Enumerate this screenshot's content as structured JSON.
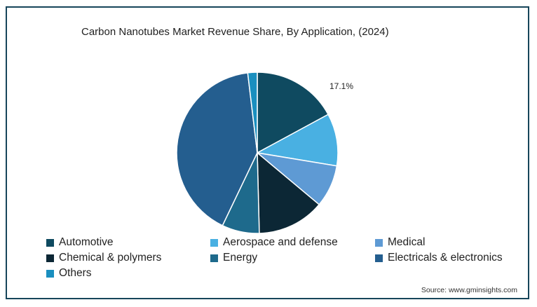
{
  "chart_data": {
    "type": "pie",
    "title": "Carbon Nanotubes Market Revenue Share, By Application, (2024)",
    "categories": [
      "Automotive",
      "Aerospace and defense",
      "Medical",
      "Chemical & polymers",
      "Energy",
      "Electricals & electronics",
      "Others"
    ],
    "values": [
      17.1,
      10.5,
      8.5,
      13.5,
      7.5,
      41.0,
      1.9
    ],
    "colors": [
      "#0f4a60",
      "#49b0e2",
      "#5e9ad4",
      "#0c2735",
      "#1e6a8c",
      "#245e8f",
      "#1a8fbf"
    ],
    "data_labels": [
      "17.1%",
      "",
      "",
      "",
      "",
      "",
      ""
    ],
    "legend_position": "bottom"
  },
  "legend": [
    {
      "label": "Automotive",
      "color": "#0f4a60"
    },
    {
      "label": "Aerospace and defense",
      "color": "#49b0e2"
    },
    {
      "label": "Medical",
      "color": "#5e9ad4"
    },
    {
      "label": "Chemical & polymers",
      "color": "#0c2735"
    },
    {
      "label": "Energy",
      "color": "#1e6a8c"
    },
    {
      "label": "Electricals & electronics",
      "color": "#245e8f"
    },
    {
      "label": "Others",
      "color": "#1a8fbf"
    }
  ],
  "source": "Source: www.gminsights.com"
}
